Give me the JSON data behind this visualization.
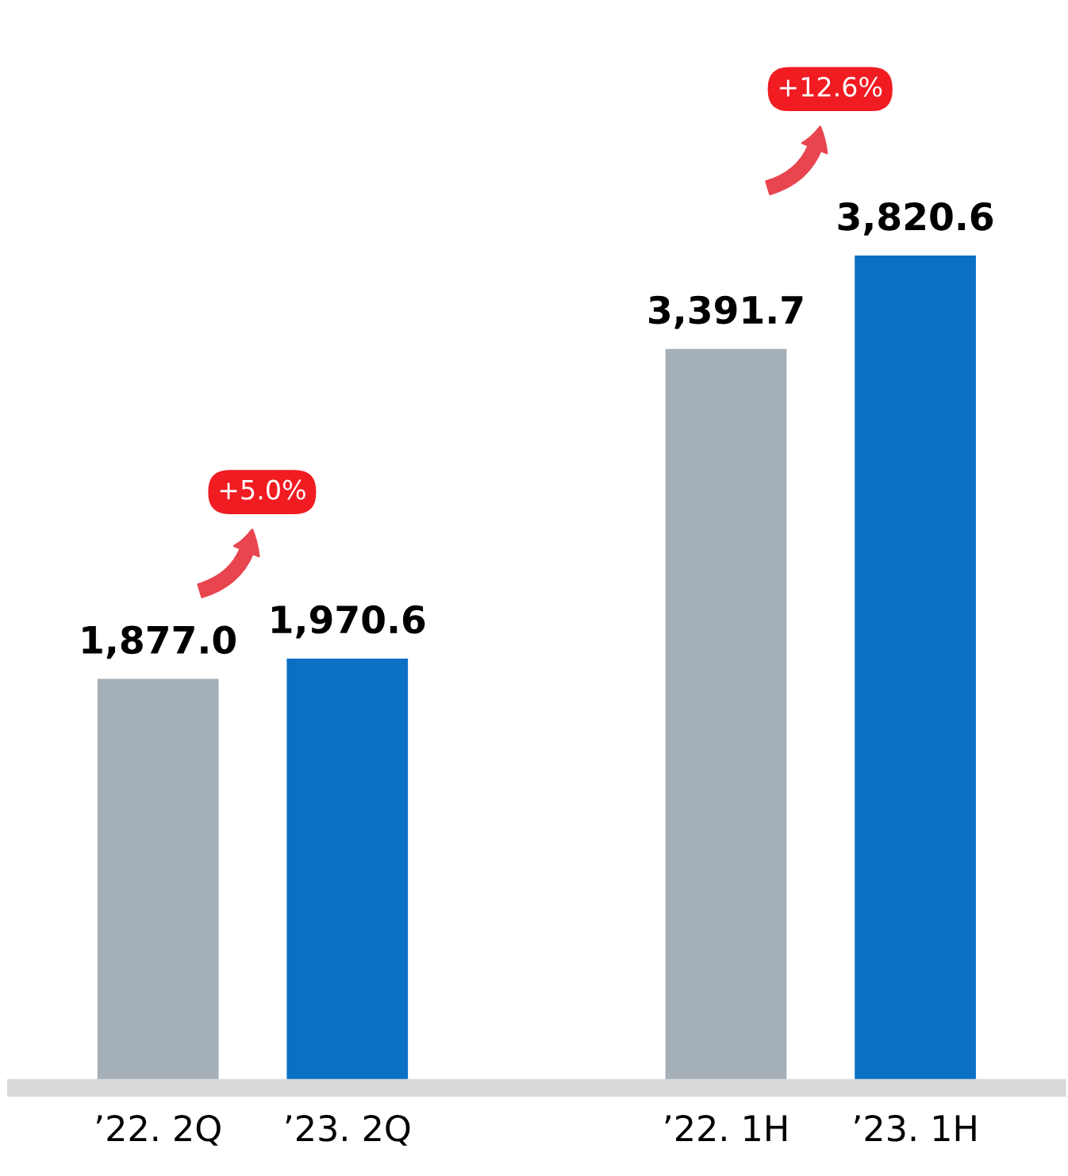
{
  "chart_data": {
    "type": "bar",
    "categories": [
      "’22. 2Q",
      "’23. 2Q",
      null,
      "’22. 1H",
      "’23. 1H"
    ],
    "values": [
      1877.0,
      1970.6,
      null,
      3391.7,
      3820.6
    ],
    "colors": [
      "#a4afb8",
      "#0a70c4",
      "#a4afb8",
      "#a4afb8",
      "#0a70c4"
    ],
    "value_labels": [
      "1,877.0",
      "1,970.6",
      null,
      "3,391.7",
      "3,820.6"
    ],
    "annotations": [
      "+5.0%",
      "+12.6%"
    ]
  }
}
